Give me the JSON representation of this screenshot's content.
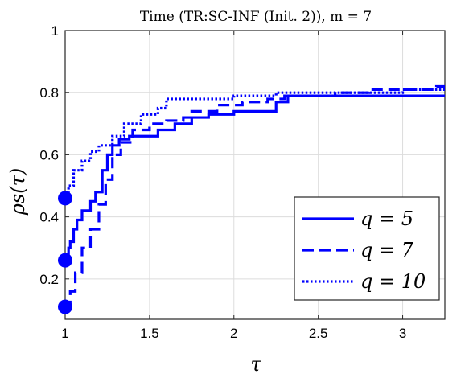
{
  "chart_data": {
    "type": "line",
    "title": "Time (TR:SC-INF (Init. 2)), m = 7",
    "xlabel": "τ",
    "ylabel": "ρs(τ)",
    "xlim": [
      1,
      3.25
    ],
    "ylim": [
      0.07,
      1.0
    ],
    "xticks": [
      1,
      1.5,
      2,
      2.5,
      3
    ],
    "xtick_labels": [
      "1",
      "1.5",
      "2",
      "2.5",
      "3"
    ],
    "yticks": [
      0.2,
      0.4,
      0.6,
      0.8,
      1
    ],
    "ytick_labels": [
      "0.2",
      "0.4",
      "0.6",
      "0.8",
      "1"
    ],
    "grid": true,
    "legend_position": "bottom-right",
    "color": "#0000ff",
    "series": [
      {
        "name": "q = 5",
        "style": "solid",
        "start_marker": true,
        "x": [
          1,
          1.02,
          1.03,
          1.05,
          1.07,
          1.1,
          1.15,
          1.18,
          1.22,
          1.25,
          1.28,
          1.32,
          1.38,
          1.45,
          1.55,
          1.65,
          1.75,
          1.85,
          2.0,
          2.15,
          2.25,
          2.32,
          3.25
        ],
        "y": [
          0.26,
          0.3,
          0.32,
          0.36,
          0.39,
          0.42,
          0.45,
          0.48,
          0.55,
          0.6,
          0.63,
          0.65,
          0.66,
          0.66,
          0.68,
          0.7,
          0.72,
          0.73,
          0.74,
          0.74,
          0.77,
          0.79,
          0.79
        ]
      },
      {
        "name": "q = 7",
        "style": "dashed",
        "start_marker": true,
        "x": [
          1,
          1.03,
          1.06,
          1.1,
          1.15,
          1.2,
          1.24,
          1.28,
          1.33,
          1.4,
          1.5,
          1.6,
          1.7,
          1.75,
          1.9,
          2.05,
          2.2,
          2.3,
          2.6,
          2.8,
          3.0,
          3.2,
          3.25
        ],
        "y": [
          0.11,
          0.16,
          0.22,
          0.3,
          0.36,
          0.44,
          0.52,
          0.6,
          0.64,
          0.68,
          0.7,
          0.71,
          0.72,
          0.74,
          0.76,
          0.77,
          0.78,
          0.79,
          0.8,
          0.81,
          0.81,
          0.82,
          0.82
        ]
      },
      {
        "name": "q = 10",
        "style": "dotted",
        "start_marker": true,
        "x": [
          1,
          1.02,
          1.05,
          1.1,
          1.15,
          1.2,
          1.28,
          1.35,
          1.45,
          1.55,
          1.6,
          1.8,
          2.0,
          2.15,
          2.25,
          2.5,
          3.0,
          3.25
        ],
        "y": [
          0.46,
          0.5,
          0.55,
          0.58,
          0.61,
          0.63,
          0.66,
          0.7,
          0.73,
          0.75,
          0.78,
          0.78,
          0.79,
          0.79,
          0.8,
          0.8,
          0.81,
          0.81
        ]
      }
    ]
  }
}
